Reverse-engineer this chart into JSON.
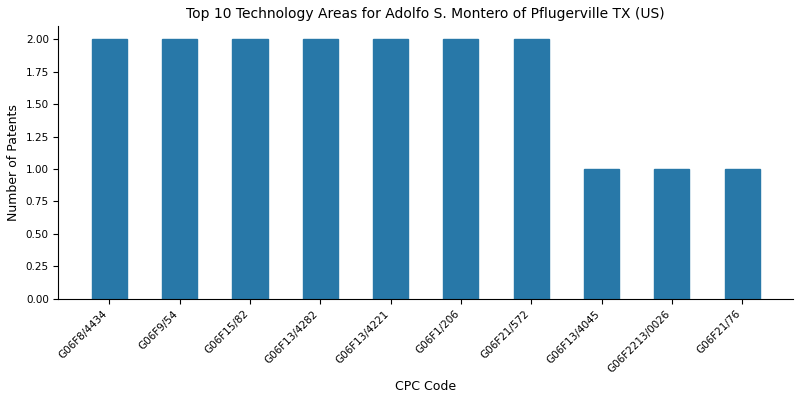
{
  "title": "Top 10 Technology Areas for Adolfo S. Montero of Pflugerville TX (US)",
  "xlabel": "CPC Code",
  "ylabel": "Number of Patents",
  "categories": [
    "G06F8/4434",
    "G06F9/54",
    "G06F15/82",
    "G06F13/4282",
    "G06F13/4221",
    "G06F1/206",
    "G06F21/572",
    "G06F13/4045",
    "G06F2213/0026",
    "G06F21/76"
  ],
  "values": [
    2,
    2,
    2,
    2,
    2,
    2,
    2,
    1,
    1,
    1
  ],
  "bar_color": "#2878a8",
  "bar_width": 0.5,
  "ylim": [
    0,
    2.1
  ],
  "yticks": [
    0.0,
    0.25,
    0.5,
    0.75,
    1.0,
    1.25,
    1.5,
    1.75,
    2.0
  ],
  "title_fontsize": 10,
  "label_fontsize": 9,
  "tick_fontsize": 7.5,
  "figsize": [
    8.0,
    4.0
  ],
  "dpi": 100
}
